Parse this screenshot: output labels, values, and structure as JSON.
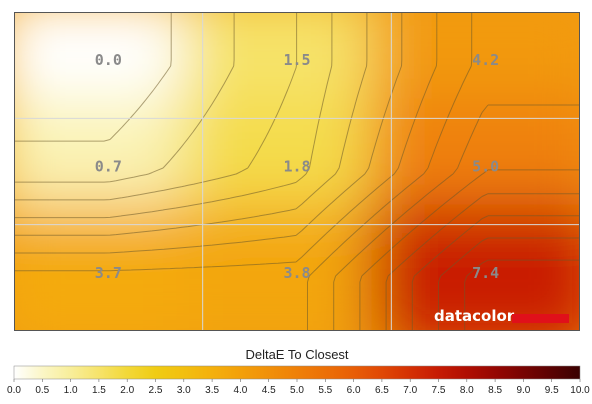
{
  "chart_data": {
    "type": "heatmap",
    "title": "DeltaE To Closest",
    "rows": 3,
    "cols": 3,
    "values": [
      [
        0.0,
        1.5,
        4.2
      ],
      [
        0.7,
        1.8,
        5.0
      ],
      [
        3.7,
        3.8,
        7.4
      ]
    ],
    "labels": [
      [
        "0.0",
        "1.5",
        "4.2"
      ],
      [
        "0.7",
        "1.8",
        "5.0"
      ],
      [
        "3.7",
        "3.8",
        "7.4"
      ]
    ],
    "scale_min": 0,
    "scale_max": 10,
    "scale_ticks": [
      "0.0",
      "0.5",
      "1.0",
      "1.5",
      "2.0",
      "2.5",
      "3.0",
      "3.5",
      "4.0",
      "4.5",
      "5.0",
      "5.5",
      "6.0",
      "6.5",
      "7.0",
      "7.5",
      "8.0",
      "8.5",
      "9.0",
      "9.5",
      "10.0"
    ],
    "scale_colors": [
      "#ffffff",
      "#fbf6c6",
      "#f8ee9a",
      "#f6e36a",
      "#f2d838",
      "#f0cc14",
      "#f2bf10",
      "#f4b00c",
      "#f3a00a",
      "#f19009",
      "#ef8008",
      "#ec7007",
      "#e85e06",
      "#e04805",
      "#d43004",
      "#c61b03",
      "#b00e02",
      "#960702",
      "#780402",
      "#5a0202",
      "#3a0101"
    ],
    "contour_lines": true,
    "grid": true
  },
  "watermark": {
    "brand": "datacolor",
    "accent": "#e0101a"
  }
}
